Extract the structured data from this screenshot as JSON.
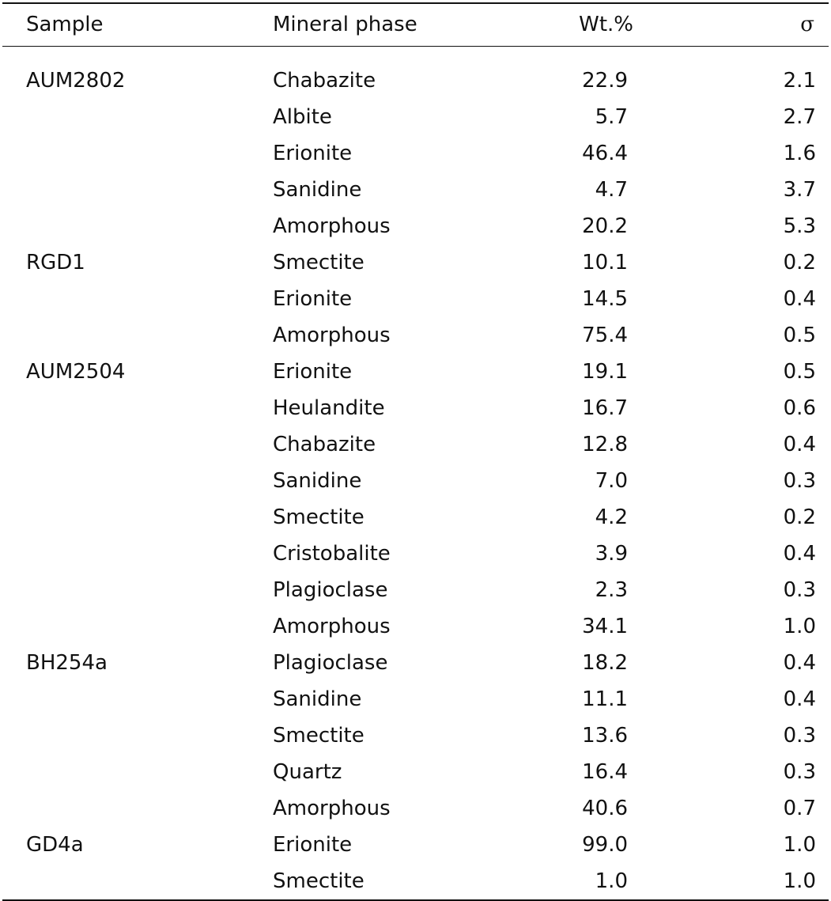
{
  "headers": {
    "sample": "Sample",
    "phase": "Mineral phase",
    "wt": "Wt.%",
    "sigma": "σ"
  },
  "rows": [
    {
      "sample": "AUM2802",
      "phase": "Chabazite",
      "wt": "22.9",
      "sigma": "2.1"
    },
    {
      "sample": "",
      "phase": "Albite",
      "wt": "5.7",
      "sigma": "2.7"
    },
    {
      "sample": "",
      "phase": "Erionite",
      "wt": "46.4",
      "sigma": "1.6"
    },
    {
      "sample": "",
      "phase": "Sanidine",
      "wt": "4.7",
      "sigma": "3.7"
    },
    {
      "sample": "",
      "phase": "Amorphous",
      "wt": "20.2",
      "sigma": "5.3"
    },
    {
      "sample": "RGD1",
      "phase": "Smectite",
      "wt": "10.1",
      "sigma": "0.2"
    },
    {
      "sample": "",
      "phase": "Erionite",
      "wt": "14.5",
      "sigma": "0.4"
    },
    {
      "sample": "",
      "phase": "Amorphous",
      "wt": "75.4",
      "sigma": "0.5"
    },
    {
      "sample": "AUM2504",
      "phase": "Erionite",
      "wt": "19.1",
      "sigma": "0.5"
    },
    {
      "sample": "",
      "phase": "Heulandite",
      "wt": "16.7",
      "sigma": "0.6"
    },
    {
      "sample": "",
      "phase": "Chabazite",
      "wt": "12.8",
      "sigma": "0.4"
    },
    {
      "sample": "",
      "phase": "Sanidine",
      "wt": "7.0",
      "sigma": "0.3"
    },
    {
      "sample": "",
      "phase": "Smectite",
      "wt": "4.2",
      "sigma": "0.2"
    },
    {
      "sample": "",
      "phase": "Cristobalite",
      "wt": "3.9",
      "sigma": "0.4"
    },
    {
      "sample": "",
      "phase": "Plagioclase",
      "wt": "2.3",
      "sigma": "0.3"
    },
    {
      "sample": "",
      "phase": "Amorphous",
      "wt": "34.1",
      "sigma": "1.0"
    },
    {
      "sample": "BH254a",
      "phase": "Plagioclase",
      "wt": "18.2",
      "sigma": "0.4"
    },
    {
      "sample": "",
      "phase": "Sanidine",
      "wt": "11.1",
      "sigma": "0.4"
    },
    {
      "sample": "",
      "phase": "Smectite",
      "wt": "13.6",
      "sigma": "0.3"
    },
    {
      "sample": "",
      "phase": "Quartz",
      "wt": "16.4",
      "sigma": "0.3"
    },
    {
      "sample": "",
      "phase": "Amorphous",
      "wt": "40.6",
      "sigma": "0.7"
    },
    {
      "sample": "GD4a",
      "phase": "Erionite",
      "wt": "99.0",
      "sigma": "1.0"
    },
    {
      "sample": "",
      "phase": "Smectite",
      "wt": "1.0",
      "sigma": "1.0"
    }
  ]
}
